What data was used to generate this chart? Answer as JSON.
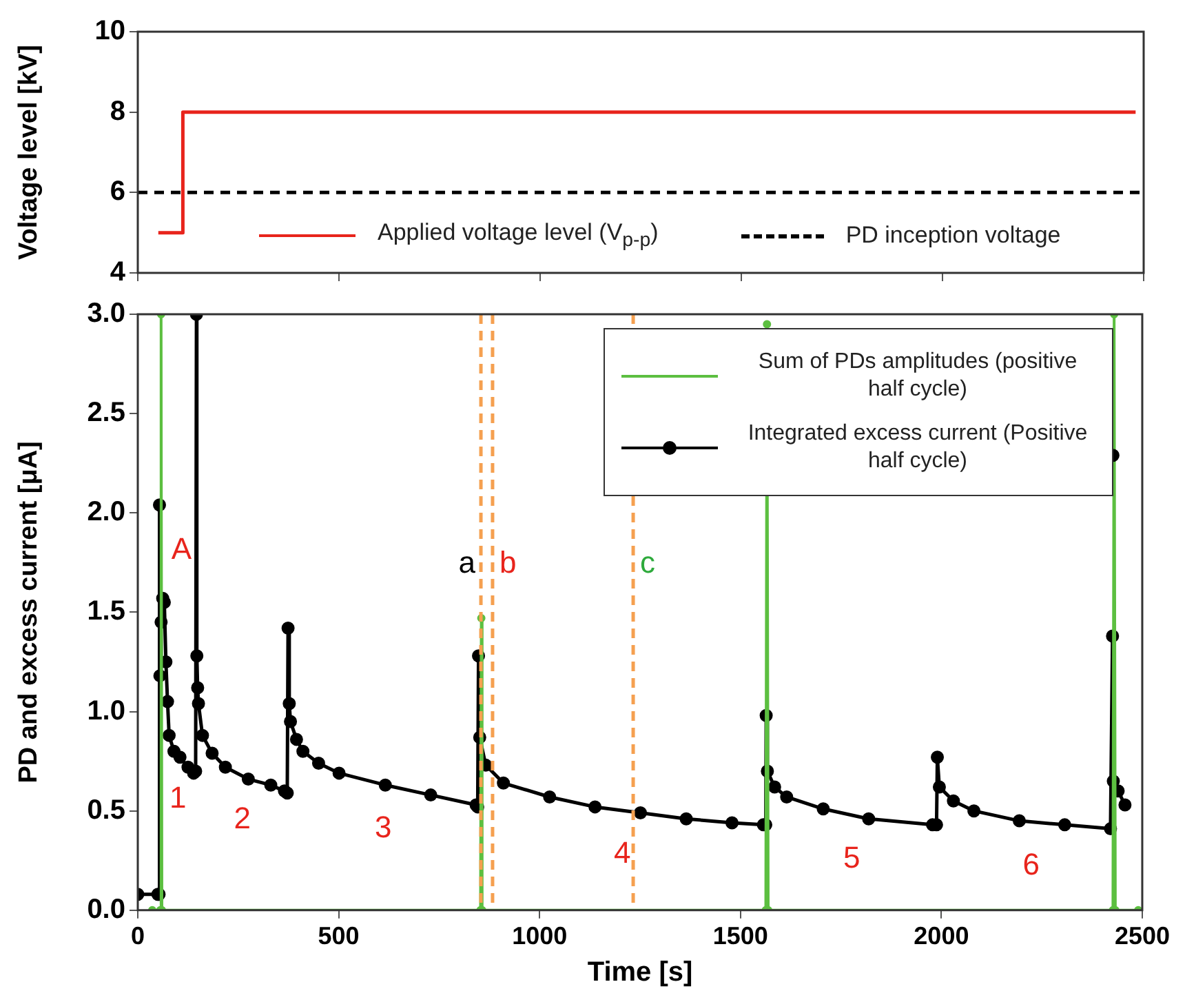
{
  "chart_data": [
    {
      "type": "line",
      "ylabel": "Voltage level [kV]",
      "xlim": [
        0,
        2500
      ],
      "xticks": [
        0,
        500,
        1000,
        1500,
        2000,
        2500
      ],
      "ylim": [
        4,
        10
      ],
      "yticks": [
        4,
        6,
        8,
        10
      ],
      "tick_labels": "y",
      "grid": false,
      "legend": "bottom",
      "marker": "none",
      "line_style": "solid",
      "series": [
        {
          "name": "Applied voltage level (V$_{p-p}$)",
          "color": "#e8241c",
          "x": [
            51,
            112,
            112,
            2480
          ],
          "values": [
            5,
            5,
            8,
            8
          ]
        }
      ],
      "ref_lines": [
        {
          "axis": "y",
          "value": 6,
          "label": "PD inception voltage",
          "color": "#000000",
          "line_style": "dashed"
        }
      ]
    },
    {
      "type": "line",
      "xlabel": "Time [s]",
      "ylabel": "PD and excess current [μA]",
      "xlim": [
        0,
        2500
      ],
      "xticks": [
        0,
        500,
        1000,
        1500,
        2000,
        2500
      ],
      "ylim": [
        0,
        3
      ],
      "yticks": [
        {
          "value": 0,
          "label": "0.0"
        },
        {
          "value": 0.5,
          "label": "0.5"
        },
        {
          "value": 1,
          "label": "1.0"
        },
        {
          "value": 1.5,
          "label": "1.5"
        },
        {
          "value": 2,
          "label": "2.0"
        },
        {
          "value": 2.5,
          "label": "2.5"
        },
        {
          "value": 3,
          "label": "3.0"
        }
      ],
      "grid": false,
      "legend": "top right",
      "marker": "circle",
      "series": [
        {
          "name": "Sum of PDs amplitudes (positive half cycle)",
          "color": "#5cbf40",
          "x": [
            36,
            56,
            58,
            60,
            853,
            855,
            857,
            1563,
            1566,
            1569,
            2427,
            2430,
            2433,
            2490
          ],
          "values": [
            0,
            0,
            3.0,
            0,
            0,
            1.47,
            0,
            0,
            2.95,
            0,
            0,
            3.0,
            0,
            0
          ]
        },
        {
          "name": "Integrated excess current (Positive half cycle)",
          "color": "#000000",
          "x": [
            0,
            50,
            53,
            54,
            55,
            58,
            62,
            66,
            70,
            74,
            78,
            90,
            105,
            125,
            139,
            144,
            146,
            147,
            149,
            151,
            161,
            185,
            218,
            275,
            331,
            365,
            372,
            374,
            377,
            380,
            395,
            411,
            450,
            501,
            616,
            729,
            842,
            846,
            848,
            851,
            866,
            910,
            1025,
            1138,
            1251,
            1365,
            1479,
            1557,
            1563,
            1564,
            1567,
            1585,
            1615,
            1706,
            1819,
            1978,
            1988,
            1990,
            1995,
            2030,
            2081,
            2194,
            2307,
            2421,
            2426,
            2428,
            2440,
            2457
          ],
          "values": [
            0.08,
            0.08,
            0.08,
            2.04,
            1.18,
            1.45,
            1.57,
            1.55,
            1.25,
            1.05,
            0.88,
            0.8,
            0.77,
            0.72,
            0.69,
            0.7,
            3.0,
            1.28,
            1.12,
            1.04,
            0.88,
            0.79,
            0.72,
            0.66,
            0.63,
            0.6,
            0.59,
            1.42,
            1.04,
            0.95,
            0.86,
            0.8,
            0.74,
            0.69,
            0.63,
            0.58,
            0.53,
            0.52,
            1.28,
            0.87,
            0.73,
            0.64,
            0.57,
            0.52,
            0.49,
            0.46,
            0.44,
            0.43,
            0.43,
            0.98,
            0.7,
            0.62,
            0.57,
            0.51,
            0.46,
            0.43,
            0.43,
            0.77,
            0.62,
            0.55,
            0.5,
            0.45,
            0.43,
            0.41,
            1.38,
            0.65,
            0.6,
            0.53
          ]
        },
        {
          "type": "scatter",
          "color": "#000000",
          "x": [
            2427
          ],
          "values": [
            2.29
          ]
        }
      ],
      "ref_lines": [
        {
          "axis": "x",
          "value": 854,
          "label": "a",
          "color": "#f5a050",
          "line_style": "dashed"
        },
        {
          "axis": "x",
          "value": 883,
          "label": "b",
          "color": "#f5a050",
          "line_style": "dashed"
        },
        {
          "axis": "x",
          "value": 1233,
          "label": "c",
          "color": "#f5a050",
          "line_style": "dashed"
        }
      ],
      "annotations": [
        "A",
        "1",
        "2",
        "3",
        "4",
        "5",
        "6"
      ]
    }
  ]
}
